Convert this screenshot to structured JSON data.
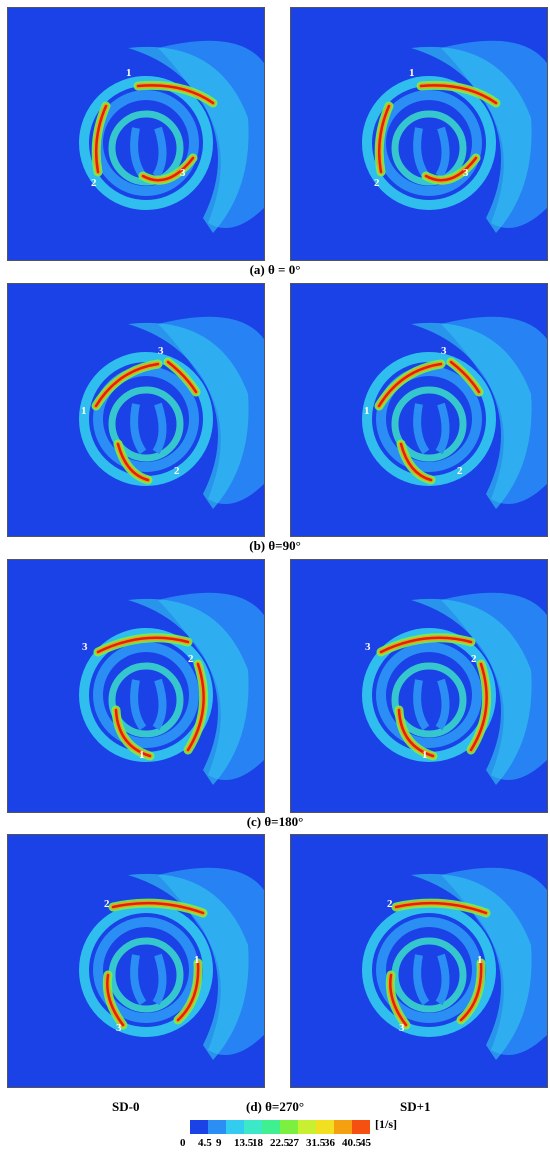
{
  "captions": [
    "(a)  θ = 0°",
    "(b)  θ=90°",
    "(c)  θ=180°",
    "(d)  θ=270°"
  ],
  "columns": [
    "SD-0",
    "SD+1"
  ],
  "colorbar": {
    "unit": "[1/s]",
    "ticks": [
      "0",
      "4.5",
      "9",
      "13.5",
      "18",
      "22.5",
      "27",
      "31.5",
      "36",
      "40.5",
      "45"
    ],
    "colors": [
      "#1a42e6",
      "#2a8ef5",
      "#33ccf0",
      "#3de8c8",
      "#40f090",
      "#7cf040",
      "#c8f030",
      "#f0e020",
      "#f5a010",
      "#f55010"
    ]
  },
  "rows": [
    {
      "blades": [
        {
          "n": "1",
          "x": 118,
          "y": 68
        },
        {
          "n": "2",
          "x": 83,
          "y": 178
        },
        {
          "n": "3",
          "x": 172,
          "y": 168
        }
      ]
    },
    {
      "blades": [
        {
          "n": "3",
          "x": 150,
          "y": 70
        },
        {
          "n": "1",
          "x": 73,
          "y": 130
        },
        {
          "n": "2",
          "x": 166,
          "y": 190
        }
      ]
    },
    {
      "blades": [
        {
          "n": "3",
          "x": 74,
          "y": 90
        },
        {
          "n": "2",
          "x": 180,
          "y": 102
        },
        {
          "n": "1",
          "x": 131,
          "y": 198
        }
      ]
    },
    {
      "blades": [
        {
          "n": "2",
          "x": 96,
          "y": 72
        },
        {
          "n": "1",
          "x": 186,
          "y": 128
        },
        {
          "n": "3",
          "x": 108,
          "y": 196
        }
      ]
    }
  ],
  "blade_paths": [
    [
      "M130,78 Q175,74 205,95",
      "M98,98 Q84,130 90,164",
      "M135,168 Q160,182 185,150"
    ],
    [
      "M160,78 Q178,92 188,108",
      "M88,122 Q110,86 150,80",
      "M140,196 Q118,190 110,160"
    ],
    [
      "M90,92 Q135,70 180,82",
      "M190,104 Q205,150 180,190",
      "M142,196 Q110,186 108,150"
    ],
    [
      "M105,72 Q150,62 195,78",
      "M190,128 Q192,165 170,185",
      "M115,190 Q96,165 100,140"
    ]
  ]
}
